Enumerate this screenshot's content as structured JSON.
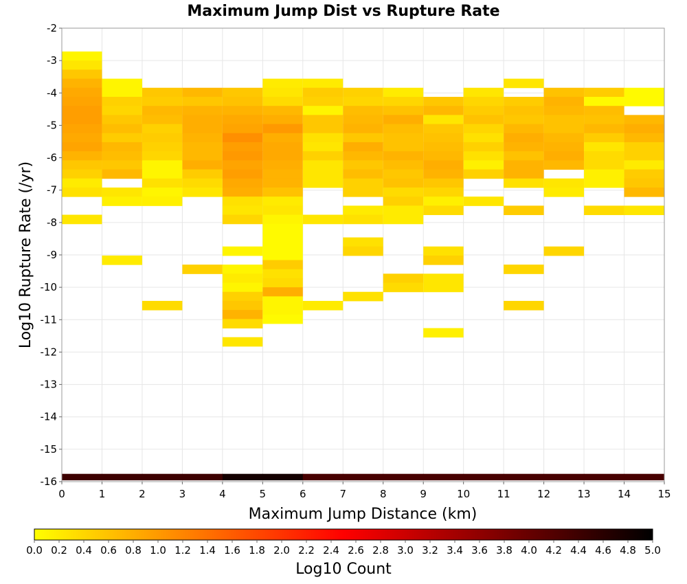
{
  "chart_data": {
    "type": "heatmap",
    "title": "Maximum Jump Dist vs Rupture Rate",
    "xlabel": "Maximum Jump Distance (km)",
    "ylabel": "Log10 Rupture Rate (/yr)",
    "xlim": [
      0,
      15
    ],
    "ylim": [
      -16,
      -2
    ],
    "x_ticks": [
      "0",
      "1",
      "2",
      "3",
      "4",
      "5",
      "6",
      "7",
      "8",
      "9",
      "10",
      "11",
      "12",
      "13",
      "14",
      "15"
    ],
    "y_ticks": [
      "-2",
      "-3",
      "-4",
      "-5",
      "-6",
      "-7",
      "-8",
      "-9",
      "-10",
      "-11",
      "-12",
      "-13",
      "-14",
      "-15",
      "-16"
    ],
    "grid": true,
    "x_bin_width": 1,
    "y_bin_height": 0.28,
    "cells_note_format": "[x_bin_start, y_bin_center, log10_count]",
    "cells": [
      [
        0,
        -2.86,
        0.1
      ],
      [
        0,
        -3.14,
        0.25
      ],
      [
        0,
        -3.42,
        0.55
      ],
      [
        0,
        -3.7,
        0.75
      ],
      [
        0,
        -3.98,
        0.85
      ],
      [
        0,
        -4.26,
        0.9
      ],
      [
        0,
        -4.54,
        0.95
      ],
      [
        0,
        -4.82,
        0.95
      ],
      [
        0,
        -5.1,
        0.9
      ],
      [
        0,
        -5.38,
        0.85
      ],
      [
        0,
        -5.66,
        0.9
      ],
      [
        0,
        -5.94,
        0.75
      ],
      [
        0,
        -6.22,
        0.55
      ],
      [
        0,
        -6.5,
        0.45
      ],
      [
        0,
        -6.78,
        0.2
      ],
      [
        0,
        -7.06,
        0.3
      ],
      [
        0,
        -7.9,
        0.25
      ],
      [
        1,
        -3.7,
        0.1
      ],
      [
        1,
        -3.98,
        0.1
      ],
      [
        1,
        -4.26,
        0.45
      ],
      [
        1,
        -4.54,
        0.4
      ],
      [
        1,
        -4.82,
        0.55
      ],
      [
        1,
        -5.1,
        0.65
      ],
      [
        1,
        -5.38,
        0.5
      ],
      [
        1,
        -5.66,
        0.7
      ],
      [
        1,
        -5.94,
        0.65
      ],
      [
        1,
        -6.22,
        0.55
      ],
      [
        1,
        -6.5,
        0.7
      ],
      [
        1,
        -7.06,
        0.25
      ],
      [
        1,
        -7.34,
        0.15
      ],
      [
        1,
        -9.16,
        0.2
      ],
      [
        2,
        -3.98,
        0.55
      ],
      [
        2,
        -4.26,
        0.5
      ],
      [
        2,
        -4.54,
        0.7
      ],
      [
        2,
        -4.82,
        0.65
      ],
      [
        2,
        -5.1,
        0.45
      ],
      [
        2,
        -5.38,
        0.5
      ],
      [
        2,
        -5.66,
        0.45
      ],
      [
        2,
        -5.94,
        0.4
      ],
      [
        2,
        -6.22,
        0.1
      ],
      [
        2,
        -6.5,
        0.1
      ],
      [
        2,
        -6.78,
        0.3
      ],
      [
        2,
        -7.06,
        0.1
      ],
      [
        2,
        -7.34,
        0.15
      ],
      [
        2,
        -10.56,
        0.35
      ],
      [
        3,
        -3.98,
        0.7
      ],
      [
        3,
        -4.26,
        0.55
      ],
      [
        3,
        -4.54,
        0.75
      ],
      [
        3,
        -4.82,
        0.8
      ],
      [
        3,
        -5.1,
        0.8
      ],
      [
        3,
        -5.38,
        0.75
      ],
      [
        3,
        -5.66,
        0.7
      ],
      [
        3,
        -5.94,
        0.7
      ],
      [
        3,
        -6.22,
        0.8
      ],
      [
        3,
        -6.5,
        0.5
      ],
      [
        3,
        -6.78,
        0.35
      ],
      [
        3,
        -7.06,
        0.25
      ],
      [
        3,
        -9.44,
        0.45
      ],
      [
        4,
        -3.98,
        0.55
      ],
      [
        4,
        -4.26,
        0.6
      ],
      [
        4,
        -4.54,
        0.75
      ],
      [
        4,
        -4.82,
        0.85
      ],
      [
        4,
        -5.1,
        0.9
      ],
      [
        4,
        -5.38,
        1.1
      ],
      [
        4,
        -5.66,
        0.95
      ],
      [
        4,
        -5.94,
        1.0
      ],
      [
        4,
        -6.22,
        0.9
      ],
      [
        4,
        -6.5,
        0.95
      ],
      [
        4,
        -6.78,
        0.85
      ],
      [
        4,
        -7.06,
        0.8
      ],
      [
        4,
        -7.34,
        0.3
      ],
      [
        4,
        -7.62,
        0.25
      ],
      [
        4,
        -7.9,
        0.4
      ],
      [
        4,
        -8.88,
        0.1
      ],
      [
        4,
        -9.44,
        0.1
      ],
      [
        4,
        -9.72,
        0.2
      ],
      [
        4,
        -10.0,
        0.1
      ],
      [
        4,
        -10.28,
        0.45
      ],
      [
        4,
        -10.56,
        0.55
      ],
      [
        4,
        -10.84,
        0.75
      ],
      [
        4,
        -11.12,
        0.35
      ],
      [
        4,
        -11.68,
        0.25
      ],
      [
        5,
        -3.7,
        0.2
      ],
      [
        5,
        -3.98,
        0.25
      ],
      [
        5,
        -4.26,
        0.35
      ],
      [
        5,
        -4.54,
        0.7
      ],
      [
        5,
        -4.82,
        0.8
      ],
      [
        5,
        -5.1,
        1.0
      ],
      [
        5,
        -5.38,
        0.8
      ],
      [
        5,
        -5.66,
        0.85
      ],
      [
        5,
        -5.94,
        0.85
      ],
      [
        5,
        -6.22,
        0.8
      ],
      [
        5,
        -6.5,
        0.75
      ],
      [
        5,
        -6.78,
        0.75
      ],
      [
        5,
        -7.06,
        0.6
      ],
      [
        5,
        -7.34,
        0.2
      ],
      [
        5,
        -7.62,
        0.25
      ],
      [
        5,
        -7.9,
        0.1
      ],
      [
        5,
        -8.18,
        0.05
      ],
      [
        5,
        -8.46,
        0.05
      ],
      [
        5,
        -8.74,
        0.05
      ],
      [
        5,
        -9.02,
        0.05
      ],
      [
        5,
        -9.3,
        0.5
      ],
      [
        5,
        -9.58,
        0.3
      ],
      [
        5,
        -9.86,
        0.35
      ],
      [
        5,
        -10.14,
        0.8
      ],
      [
        5,
        -10.42,
        0.1
      ],
      [
        5,
        -10.7,
        0.1
      ],
      [
        5,
        -10.98,
        0.05
      ],
      [
        6,
        -3.7,
        0.2
      ],
      [
        6,
        -3.98,
        0.5
      ],
      [
        6,
        -4.26,
        0.45
      ],
      [
        6,
        -4.54,
        0.1
      ],
      [
        6,
        -4.82,
        0.55
      ],
      [
        6,
        -5.1,
        0.55
      ],
      [
        6,
        -5.38,
        0.3
      ],
      [
        6,
        -5.66,
        0.25
      ],
      [
        6,
        -5.94,
        0.45
      ],
      [
        6,
        -6.22,
        0.25
      ],
      [
        6,
        -6.5,
        0.25
      ],
      [
        6,
        -6.78,
        0.25
      ],
      [
        6,
        -7.9,
        0.25
      ],
      [
        6,
        -10.56,
        0.2
      ],
      [
        7,
        -3.98,
        0.45
      ],
      [
        7,
        -4.26,
        0.4
      ],
      [
        7,
        -4.54,
        0.65
      ],
      [
        7,
        -4.82,
        0.7
      ],
      [
        7,
        -5.1,
        0.75
      ],
      [
        7,
        -5.38,
        0.55
      ],
      [
        7,
        -5.66,
        0.8
      ],
      [
        7,
        -5.94,
        0.7
      ],
      [
        7,
        -6.22,
        0.55
      ],
      [
        7,
        -6.5,
        0.65
      ],
      [
        7,
        -6.78,
        0.45
      ],
      [
        7,
        -7.06,
        0.45
      ],
      [
        7,
        -7.62,
        0.2
      ],
      [
        7,
        -7.9,
        0.3
      ],
      [
        7,
        -8.6,
        0.3
      ],
      [
        7,
        -8.88,
        0.4
      ],
      [
        7,
        -10.28,
        0.3
      ],
      [
        8,
        -3.98,
        0.2
      ],
      [
        8,
        -4.26,
        0.4
      ],
      [
        8,
        -4.54,
        0.6
      ],
      [
        8,
        -4.82,
        0.8
      ],
      [
        8,
        -5.1,
        0.65
      ],
      [
        8,
        -5.38,
        0.6
      ],
      [
        8,
        -5.66,
        0.6
      ],
      [
        8,
        -5.94,
        0.75
      ],
      [
        8,
        -6.22,
        0.65
      ],
      [
        8,
        -6.5,
        0.55
      ],
      [
        8,
        -6.78,
        0.6
      ],
      [
        8,
        -7.06,
        0.35
      ],
      [
        8,
        -7.34,
        0.45
      ],
      [
        8,
        -7.62,
        0.2
      ],
      [
        8,
        -7.9,
        0.2
      ],
      [
        8,
        -9.72,
        0.45
      ],
      [
        8,
        -10.0,
        0.35
      ],
      [
        9,
        -4.26,
        0.55
      ],
      [
        9,
        -4.54,
        0.7
      ],
      [
        9,
        -4.82,
        0.25
      ],
      [
        9,
        -5.1,
        0.55
      ],
      [
        9,
        -5.38,
        0.6
      ],
      [
        9,
        -5.66,
        0.65
      ],
      [
        9,
        -5.94,
        0.7
      ],
      [
        9,
        -6.22,
        0.8
      ],
      [
        9,
        -6.5,
        0.75
      ],
      [
        9,
        -6.78,
        0.55
      ],
      [
        9,
        -7.06,
        0.4
      ],
      [
        9,
        -7.34,
        0.15
      ],
      [
        9,
        -7.62,
        0.35
      ],
      [
        9,
        -8.88,
        0.3
      ],
      [
        9,
        -9.16,
        0.45
      ],
      [
        9,
        -9.72,
        0.25
      ],
      [
        9,
        -10.0,
        0.25
      ],
      [
        9,
        -11.4,
        0.15
      ],
      [
        10,
        -3.98,
        0.25
      ],
      [
        10,
        -4.26,
        0.4
      ],
      [
        10,
        -4.54,
        0.5
      ],
      [
        10,
        -4.82,
        0.6
      ],
      [
        10,
        -5.1,
        0.4
      ],
      [
        10,
        -5.38,
        0.3
      ],
      [
        10,
        -5.66,
        0.45
      ],
      [
        10,
        -5.94,
        0.3
      ],
      [
        10,
        -6.22,
        0.15
      ],
      [
        10,
        -6.5,
        0.45
      ],
      [
        10,
        -7.34,
        0.25
      ],
      [
        11,
        -3.7,
        0.25
      ],
      [
        11,
        -4.26,
        0.5
      ],
      [
        11,
        -4.54,
        0.6
      ],
      [
        11,
        -4.82,
        0.55
      ],
      [
        11,
        -5.1,
        0.7
      ],
      [
        11,
        -5.38,
        0.8
      ],
      [
        11,
        -5.66,
        0.75
      ],
      [
        11,
        -5.94,
        0.6
      ],
      [
        11,
        -6.22,
        0.75
      ],
      [
        11,
        -6.5,
        0.75
      ],
      [
        11,
        -6.78,
        0.3
      ],
      [
        11,
        -7.62,
        0.5
      ],
      [
        11,
        -9.44,
        0.4
      ],
      [
        11,
        -10.56,
        0.4
      ],
      [
        12,
        -3.98,
        0.6
      ],
      [
        12,
        -4.26,
        0.75
      ],
      [
        12,
        -4.54,
        0.7
      ],
      [
        12,
        -4.82,
        0.6
      ],
      [
        12,
        -5.1,
        0.6
      ],
      [
        12,
        -5.38,
        0.7
      ],
      [
        12,
        -5.66,
        0.75
      ],
      [
        12,
        -5.94,
        0.8
      ],
      [
        12,
        -6.22,
        0.7
      ],
      [
        12,
        -6.78,
        0.25
      ],
      [
        12,
        -7.06,
        0.2
      ],
      [
        12,
        -8.88,
        0.4
      ],
      [
        13,
        -3.98,
        0.5
      ],
      [
        13,
        -4.26,
        0.05
      ],
      [
        13,
        -4.54,
        0.65
      ],
      [
        13,
        -4.82,
        0.6
      ],
      [
        13,
        -5.1,
        0.7
      ],
      [
        13,
        -5.38,
        0.5
      ],
      [
        13,
        -5.66,
        0.25
      ],
      [
        13,
        -5.94,
        0.35
      ],
      [
        13,
        -6.22,
        0.35
      ],
      [
        13,
        -6.5,
        0.15
      ],
      [
        13,
        -6.78,
        0.15
      ],
      [
        13,
        -7.62,
        0.35
      ],
      [
        14,
        -3.98,
        0.05
      ],
      [
        14,
        -4.26,
        0.05
      ],
      [
        14,
        -4.82,
        0.7
      ],
      [
        14,
        -5.1,
        0.8
      ],
      [
        14,
        -5.38,
        0.7
      ],
      [
        14,
        -5.66,
        0.45
      ],
      [
        14,
        -5.94,
        0.45
      ],
      [
        14,
        -6.22,
        0.2
      ],
      [
        14,
        -6.5,
        0.5
      ],
      [
        14,
        -6.78,
        0.55
      ],
      [
        14,
        -7.06,
        0.7
      ],
      [
        14,
        -7.62,
        0.25
      ]
    ],
    "bottom_row": {
      "y_center": -15.86,
      "height": 0.2,
      "values": [
        4.4,
        4.4,
        4.4,
        4.4,
        4.8,
        4.8,
        4.3,
        4.3,
        4.3,
        4.3,
        4.3,
        4.3,
        4.3,
        4.3,
        4.3
      ]
    },
    "colorbar": {
      "label": "Log10 Count",
      "min": 0.0,
      "max": 5.0,
      "ticks": [
        "0.0",
        "0.2",
        "0.4",
        "0.6",
        "0.8",
        "1.0",
        "1.2",
        "1.4",
        "1.6",
        "1.8",
        "2.0",
        "2.2",
        "2.4",
        "2.6",
        "2.8",
        "3.0",
        "3.2",
        "3.4",
        "3.6",
        "3.8",
        "4.0",
        "4.2",
        "4.4",
        "4.6",
        "4.8",
        "5.0"
      ],
      "colors": [
        "#ffff00",
        "#ff8000",
        "#ff0000",
        "#800000",
        "#000000"
      ]
    }
  }
}
